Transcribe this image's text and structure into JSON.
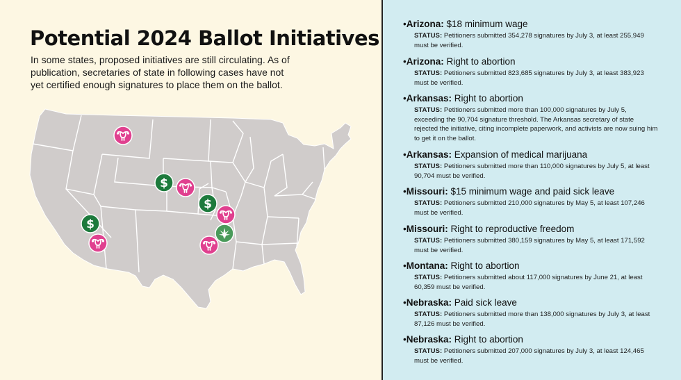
{
  "header": {
    "title": "Potential 2024 Ballot Initiatives",
    "intro": "In some states, proposed initiatives are still circulating. As of publication, secretaries of state in following cases have not yet certified enough signatures to place them on the ballot."
  },
  "colors": {
    "abortion_marker": "#e0408f",
    "wage_marker": "#1d7a3c",
    "marijuana_marker": "#4a9a5a",
    "map_fill": "#d0cccb",
    "left_bg": "#fdf7e3",
    "right_bg": "#d2ecf1"
  },
  "map": {
    "markers": [
      {
        "state": "Montana",
        "icon": "uterus-icon"
      },
      {
        "state": "Nebraska",
        "icon": "dollar-icon"
      },
      {
        "state": "Nebraska",
        "icon": "uterus-icon"
      },
      {
        "state": "Missouri",
        "icon": "dollar-icon"
      },
      {
        "state": "Missouri",
        "icon": "uterus-icon"
      },
      {
        "state": "Arkansas",
        "icon": "cannabis-leaf-icon"
      },
      {
        "state": "Arkansas",
        "icon": "uterus-icon"
      },
      {
        "state": "Arizona",
        "icon": "dollar-icon"
      },
      {
        "state": "Arizona",
        "icon": "uterus-icon"
      }
    ]
  },
  "status_label": "STATUS:",
  "initiatives": [
    {
      "bullet": "•",
      "state": "Arizona:",
      "measure": "$18 minimum wage",
      "status": "Petitioners submitted 354,278 signatures by July 3, at least 255,949 must be verified."
    },
    {
      "bullet": "•",
      "state": "Arizona:",
      "measure": "Right to abortion",
      "status": "Petitioners submitted 823,685 signatures by July 3, at least 383,923 must be verified."
    },
    {
      "bullet": "•",
      "state": "Arkansas:",
      "measure": "Right to abortion",
      "status": "Petitioners submitted more than 100,000 signatures by July 5, exceeding the 90,704 signature threshold. The Arkansas secretary of state rejected the initiative, citing incomplete paperwork, and activists are now suing him to get it on the ballot."
    },
    {
      "bullet": "•",
      "state": "Arkansas:",
      "measure": "Expansion of medical marijuana",
      "status": "Petitioners submitted more than 110,000 signatures by July 5, at least 90,704 must be verified."
    },
    {
      "bullet": "•",
      "state": "Missouri:",
      "measure": "$15 minimum wage and paid sick leave",
      "status": "Petitioners submitted 210,000 signatures by May 5, at least 107,246 must be verified."
    },
    {
      "bullet": "•",
      "state": "Missouri:",
      "measure": "Right to reproductive freedom",
      "status": "Petitioners submitted 380,159 signatures by May 5, at least 171,592 must be verified."
    },
    {
      "bullet": "•",
      "state": "Montana:",
      "measure": "Right to abortion",
      "status": "Petitioners submitted about 117,000 signatures by June 21, at least 60,359 must be verified."
    },
    {
      "bullet": "•",
      "state": "Nebraska:",
      "measure": "Paid sick leave",
      "status": "Petitioners submitted more than 138,000 signatures by July 3, at least 87,126 must be verified."
    },
    {
      "bullet": "•",
      "state": "Nebraska:",
      "measure": "Right to abortion",
      "status": "Petitioners submitted 207,000 signatures by July 3, at least 124,465 must be verified."
    }
  ]
}
